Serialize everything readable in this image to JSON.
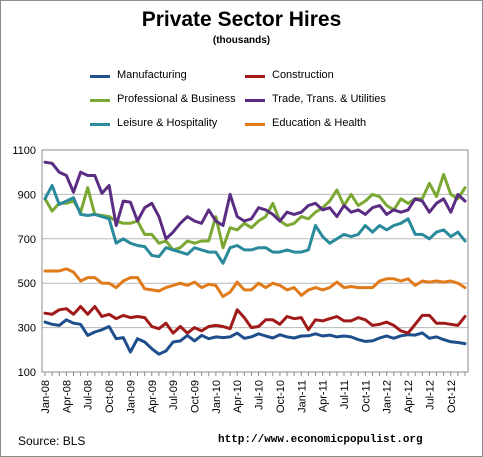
{
  "footer": {
    "source": "Source: BLS",
    "url": "http://www.economicpopulist.org"
  },
  "chart_data": {
    "type": "line",
    "title": "Private Sector Hires",
    "subtitle": "(thousands)",
    "xlabel": "",
    "ylabel": "",
    "ylim": [
      100,
      1100
    ],
    "yticks": [
      100,
      300,
      500,
      700,
      900,
      1100
    ],
    "grid": true,
    "legend_position": "top",
    "x": [
      "Jan-08",
      "Feb-08",
      "Mar-08",
      "Apr-08",
      "May-08",
      "Jun-08",
      "Jul-08",
      "Aug-08",
      "Sep-08",
      "Oct-08",
      "Nov-08",
      "Dec-08",
      "Jan-09",
      "Feb-09",
      "Mar-09",
      "Apr-09",
      "May-09",
      "Jun-09",
      "Jul-09",
      "Aug-09",
      "Sep-09",
      "Oct-09",
      "Nov-09",
      "Dec-09",
      "Jan-10",
      "Feb-10",
      "Mar-10",
      "Apr-10",
      "May-10",
      "Jun-10",
      "Jul-10",
      "Aug-10",
      "Sep-10",
      "Oct-10",
      "Nov-10",
      "Dec-10",
      "Jan-11",
      "Feb-11",
      "Mar-11",
      "Apr-11",
      "May-11",
      "Jun-11",
      "Jul-11",
      "Aug-11",
      "Sep-11",
      "Oct-11",
      "Nov-11",
      "Dec-11",
      "Jan-12",
      "Feb-12",
      "Mar-12",
      "Apr-12",
      "May-12",
      "Jun-12",
      "Jul-12",
      "Aug-12",
      "Sep-12",
      "Oct-12",
      "Nov-12",
      "Dec-12"
    ],
    "xtick_labels": [
      "Jan-08",
      "Apr-08",
      "Jul-08",
      "Oct-08",
      "Jan-09",
      "Apr-09",
      "Jul-09",
      "Oct-09",
      "Jan-10",
      "Apr-10",
      "Jul-10",
      "Oct-10",
      "Jan-11",
      "Apr-11",
      "Jul-11",
      "Oct-11",
      "Jan-12",
      "Apr-12",
      "Jul-12",
      "Oct-12"
    ],
    "series": [
      {
        "name": "Manufacturing",
        "color": "#1f4e8c",
        "values": [
          325,
          315,
          310,
          335,
          320,
          315,
          265,
          280,
          290,
          305,
          250,
          255,
          190,
          250,
          235,
          205,
          180,
          195,
          235,
          240,
          265,
          240,
          265,
          250,
          258,
          255,
          258,
          275,
          252,
          258,
          272,
          262,
          253,
          268,
          258,
          253,
          262,
          263,
          272,
          262,
          266,
          258,
          262,
          258,
          246,
          238,
          240,
          253,
          262,
          252,
          263,
          268,
          266,
          276,
          252,
          258,
          246,
          236,
          233,
          228
        ]
      },
      {
        "name": "Construction",
        "color": "#a01a1a",
        "values": [
          365,
          360,
          380,
          385,
          360,
          395,
          360,
          395,
          350,
          360,
          340,
          355,
          345,
          350,
          345,
          305,
          295,
          320,
          275,
          305,
          275,
          300,
          285,
          305,
          310,
          305,
          295,
          380,
          345,
          300,
          305,
          335,
          335,
          315,
          350,
          340,
          345,
          290,
          335,
          330,
          340,
          350,
          330,
          330,
          345,
          335,
          310,
          315,
          325,
          310,
          285,
          275,
          315,
          355,
          355,
          320,
          320,
          315,
          310,
          350
        ]
      },
      {
        "name": "Professional & Business",
        "color": "#7aa832",
        "values": [
          880,
          825,
          860,
          860,
          870,
          820,
          930,
          810,
          805,
          800,
          780,
          770,
          770,
          780,
          720,
          720,
          680,
          690,
          650,
          660,
          690,
          680,
          690,
          690,
          800,
          660,
          750,
          740,
          770,
          750,
          780,
          800,
          860,
          780,
          760,
          770,
          800,
          790,
          820,
          840,
          870,
          920,
          850,
          900,
          850,
          870,
          900,
          890,
          850,
          830,
          880,
          860,
          880,
          880,
          950,
          890,
          990,
          900,
          880,
          930
        ]
      },
      {
        "name": "Trade, Trans. & Utilities",
        "color": "#5a2d82",
        "values": [
          1045,
          1040,
          1000,
          985,
          910,
          1000,
          985,
          985,
          905,
          940,
          760,
          870,
          865,
          780,
          840,
          860,
          800,
          700,
          730,
          770,
          800,
          780,
          770,
          830,
          780,
          760,
          900,
          800,
          780,
          790,
          840,
          830,
          810,
          780,
          820,
          810,
          820,
          850,
          860,
          830,
          840,
          800,
          850,
          820,
          830,
          810,
          840,
          850,
          810,
          830,
          820,
          830,
          880,
          870,
          820,
          860,
          880,
          820,
          900,
          870
        ]
      },
      {
        "name": "Leisure & Hospitality",
        "color": "#2a8a9c",
        "values": [
          880,
          940,
          855,
          870,
          885,
          810,
          805,
          810,
          800,
          790,
          680,
          700,
          680,
          670,
          665,
          625,
          620,
          660,
          650,
          640,
          630,
          660,
          650,
          640,
          640,
          590,
          660,
          670,
          650,
          650,
          660,
          660,
          640,
          640,
          650,
          640,
          640,
          650,
          760,
          710,
          680,
          700,
          720,
          710,
          720,
          760,
          730,
          760,
          740,
          760,
          770,
          790,
          720,
          720,
          700,
          730,
          740,
          710,
          730,
          690
        ]
      },
      {
        "name": "Education & Health",
        "color": "#e07a1a",
        "values": [
          555,
          555,
          555,
          565,
          550,
          510,
          525,
          525,
          500,
          500,
          480,
          510,
          525,
          525,
          475,
          470,
          465,
          480,
          490,
          500,
          490,
          505,
          480,
          495,
          490,
          440,
          460,
          505,
          470,
          470,
          500,
          480,
          500,
          490,
          470,
          480,
          445,
          470,
          480,
          470,
          480,
          505,
          480,
          485,
          480,
          480,
          480,
          510,
          520,
          520,
          510,
          520,
          490,
          510,
          505,
          510,
          505,
          510,
          500,
          480
        ]
      }
    ]
  }
}
